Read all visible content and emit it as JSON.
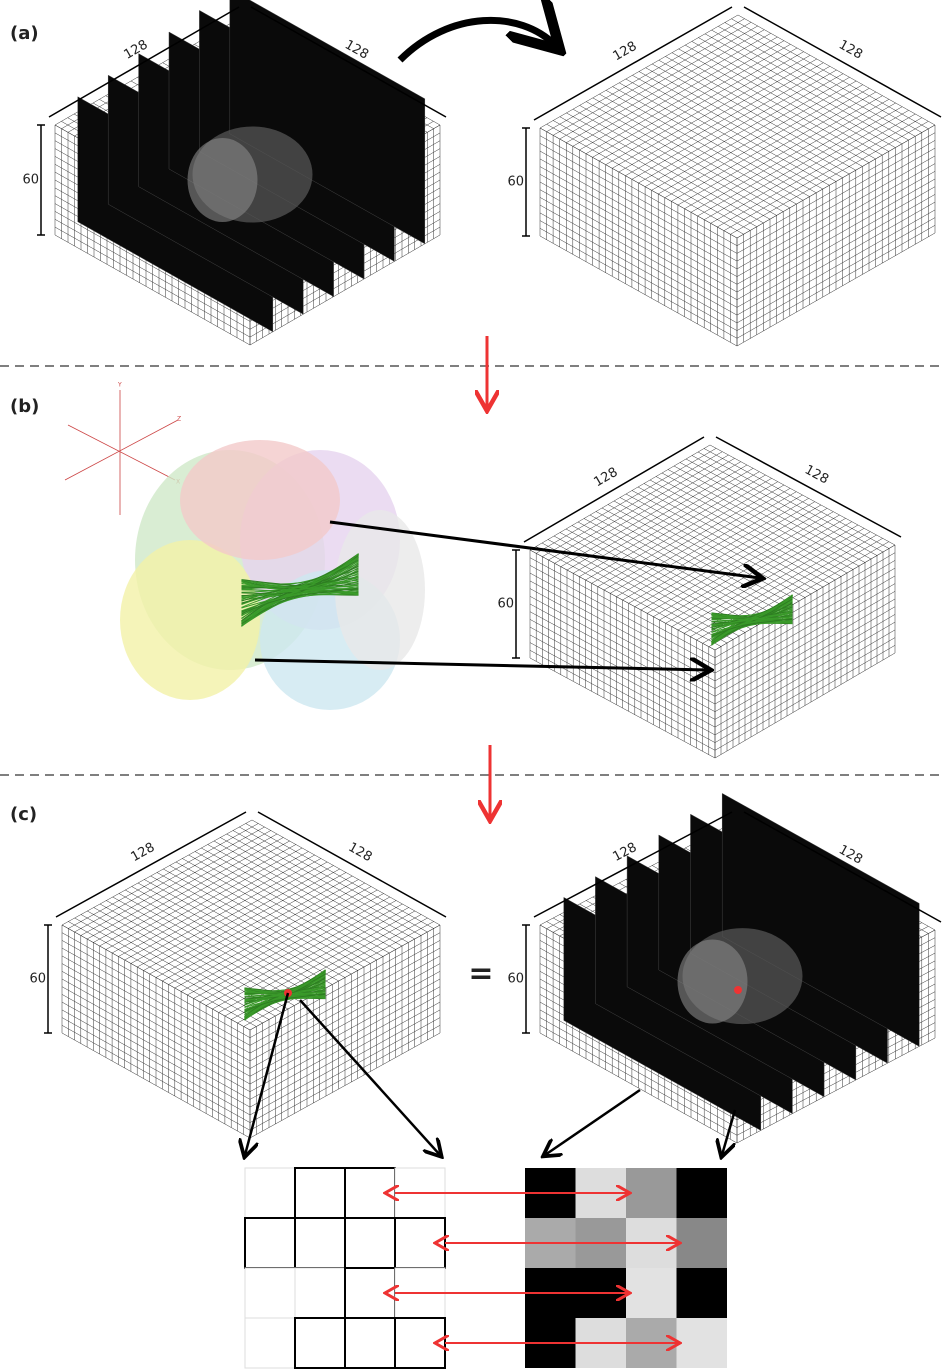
{
  "panels": [
    {
      "label": "(a)"
    },
    {
      "label": "(b)"
    },
    {
      "label": "(c)"
    }
  ],
  "dimensions": {
    "width": 128,
    "depth": 128,
    "height": 60
  },
  "axes": {
    "y": "Y",
    "z": "Z",
    "x": "X"
  },
  "equals": "="
}
